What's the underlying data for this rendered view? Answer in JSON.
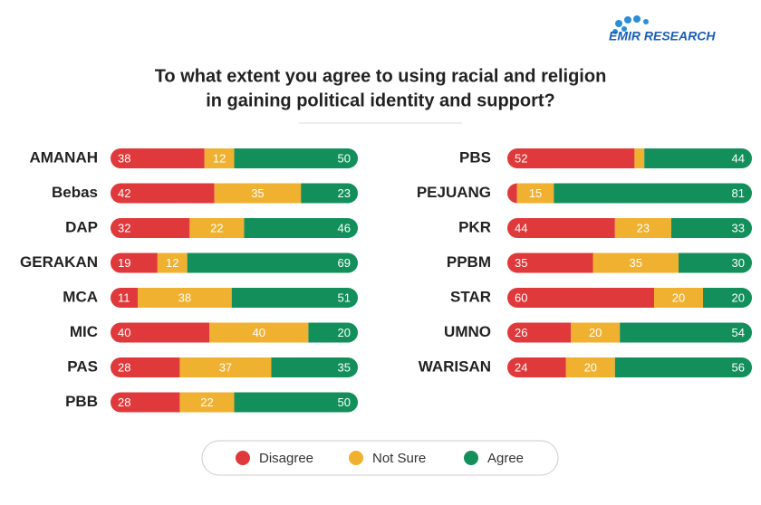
{
  "brand": "EMIR RESEARCH",
  "chart_data": {
    "type": "bar",
    "orientation": "horizontal",
    "stacked": true,
    "title": [
      "To what extent you agree to using racial and religion",
      "in gaining political identity and support?"
    ],
    "categories": [
      "AMANAH",
      "Bebas",
      "DAP",
      "GERAKAN",
      "MCA",
      "MIC",
      "PAS",
      "PBB",
      "PBS",
      "PEJUANG",
      "PKR",
      "PPBM",
      "STAR",
      "UMNO",
      "WARISAN"
    ],
    "series": [
      {
        "name": "Disagree",
        "color": "#e0393b",
        "values": [
          38,
          42,
          32,
          19,
          11,
          40,
          28,
          28,
          52,
          4,
          44,
          35,
          60,
          26,
          24
        ]
      },
      {
        "name": "Not Sure",
        "color": "#f0b130",
        "values": [
          12,
          35,
          22,
          12,
          38,
          40,
          37,
          22,
          4,
          15,
          23,
          35,
          20,
          20,
          20
        ]
      },
      {
        "name": "Agree",
        "color": "#138f5b",
        "values": [
          50,
          23,
          46,
          69,
          51,
          20,
          35,
          50,
          44,
          81,
          33,
          30,
          20,
          54,
          56
        ]
      }
    ],
    "xlim": [
      0,
      100
    ],
    "legend": "bottom"
  }
}
